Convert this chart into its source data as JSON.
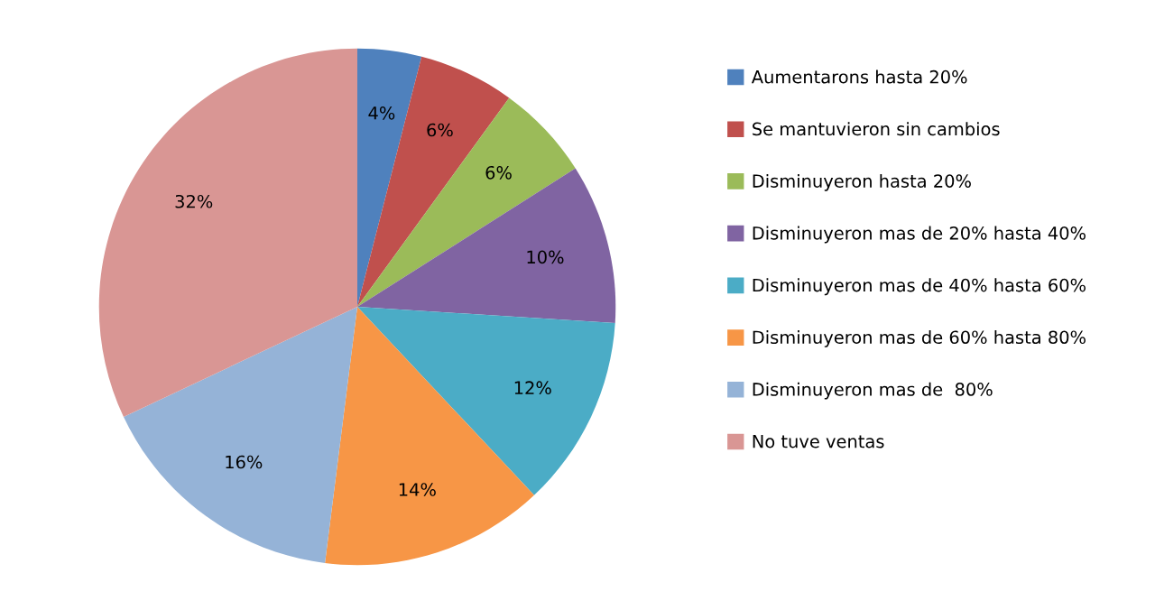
{
  "chart_data": {
    "type": "pie",
    "categories": [
      "Aumentarons hasta 20%",
      "Se mantuvieron sin cambios",
      "Disminuyeron hasta 20%",
      "Disminuyeron mas de 20% hasta 40%",
      "Disminuyeron mas de 40% hasta 60%",
      "Disminuyeron mas de 60% hasta 80%",
      "Disminuyeron mas de  80%",
      "No tuve ventas"
    ],
    "values": [
      4,
      6,
      6,
      10,
      12,
      14,
      16,
      32
    ],
    "value_labels": [
      "4%",
      "6%",
      "6%",
      "10%",
      "12%",
      "14%",
      "16%",
      "32%"
    ],
    "colors": [
      "#4f81bd",
      "#c0504d",
      "#9bbb59",
      "#8064a2",
      "#4bacc6",
      "#f79646",
      "#95b3d7",
      "#d99694"
    ],
    "legend": "right"
  }
}
